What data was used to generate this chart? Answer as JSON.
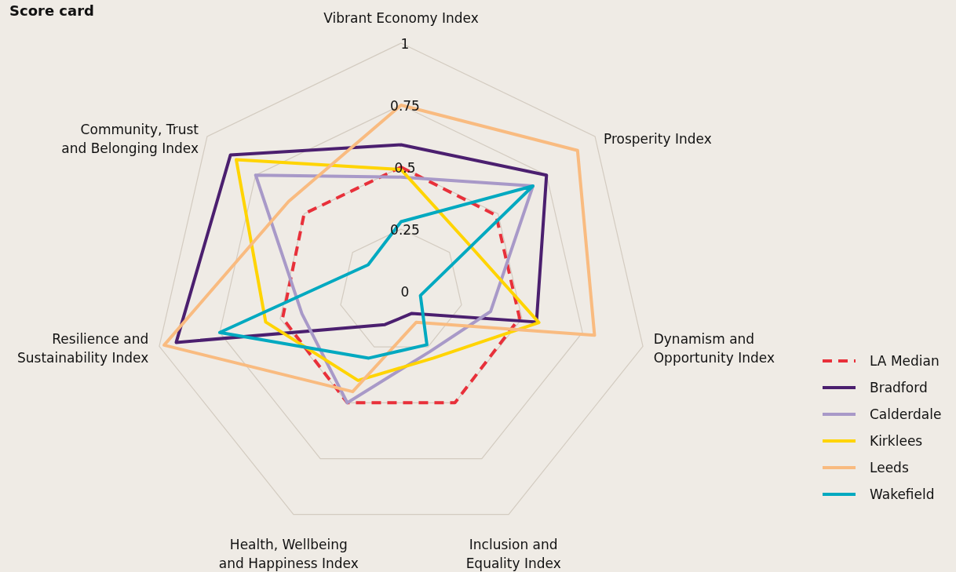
{
  "chart_data": {
    "type": "radar",
    "title": "Score card",
    "categories": [
      "Vibrant Economy Index",
      "Prosperity Index",
      "Dynamism and Opportunity Index",
      "Inclusion and Equality Index",
      "Health, Wellbeing and Happiness Index",
      "Resilience and Sustainability Index",
      "Community, Trust and Belonging Index"
    ],
    "ylim": [
      0,
      1
    ],
    "yticks": [
      0,
      0.25,
      0.5,
      0.75,
      1
    ],
    "grid": true,
    "legend": "right",
    "marker": "none",
    "series": [
      {
        "name": "LA Median",
        "color": "#e8303a",
        "line_style": "dashed",
        "values": [
          0.5,
          0.49,
          0.49,
          0.5,
          0.5,
          0.49,
          0.5
        ]
      },
      {
        "name": "Bradford",
        "color": "#4b1f6f",
        "values": [
          0.59,
          0.75,
          0.56,
          0.1,
          0.15,
          0.93,
          0.88
        ]
      },
      {
        "name": "Calderdale",
        "color": "#a899c8",
        "values": [
          0.46,
          0.68,
          0.37,
          0.27,
          0.5,
          0.41,
          0.75
        ]
      },
      {
        "name": "Kirklees",
        "color": "#ffd400",
        "values": [
          0.49,
          0.33,
          0.57,
          0.3,
          0.4,
          0.56,
          0.85
        ]
      },
      {
        "name": "Leeds",
        "color": "#f9bb80",
        "values": [
          0.75,
          0.91,
          0.8,
          0.14,
          0.45,
          0.98,
          0.58
        ]
      },
      {
        "name": "Wakefield",
        "color": "#00a9c0",
        "values": [
          0.28,
          0.68,
          0.08,
          0.24,
          0.3,
          0.75,
          0.17
        ]
      }
    ]
  }
}
